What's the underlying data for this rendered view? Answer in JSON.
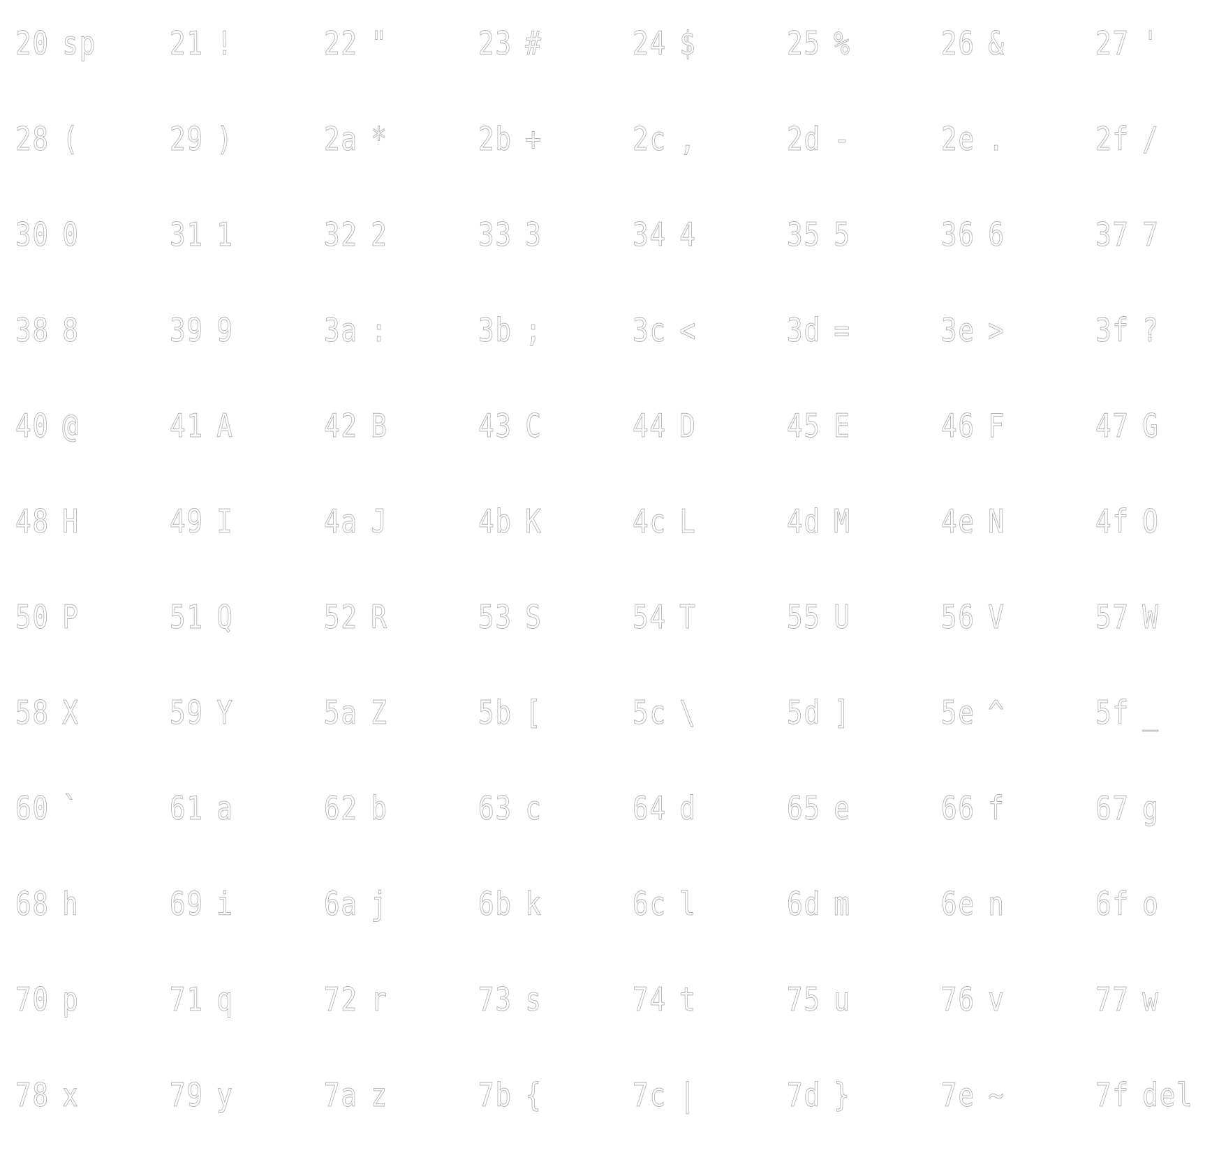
{
  "ascii_table": {
    "rows": [
      [
        {
          "code": "20",
          "ch": "sp"
        },
        {
          "code": "21",
          "ch": "!"
        },
        {
          "code": "22",
          "ch": "\""
        },
        {
          "code": "23",
          "ch": "#"
        },
        {
          "code": "24",
          "ch": "$"
        },
        {
          "code": "25",
          "ch": "%"
        },
        {
          "code": "26",
          "ch": "&"
        },
        {
          "code": "27",
          "ch": "'"
        }
      ],
      [
        {
          "code": "28",
          "ch": "("
        },
        {
          "code": "29",
          "ch": ")"
        },
        {
          "code": "2a",
          "ch": "*"
        },
        {
          "code": "2b",
          "ch": "+"
        },
        {
          "code": "2c",
          "ch": ","
        },
        {
          "code": "2d",
          "ch": "-"
        },
        {
          "code": "2e",
          "ch": "."
        },
        {
          "code": "2f",
          "ch": "/"
        }
      ],
      [
        {
          "code": "30",
          "ch": "0"
        },
        {
          "code": "31",
          "ch": "1"
        },
        {
          "code": "32",
          "ch": "2"
        },
        {
          "code": "33",
          "ch": "3"
        },
        {
          "code": "34",
          "ch": "4"
        },
        {
          "code": "35",
          "ch": "5"
        },
        {
          "code": "36",
          "ch": "6"
        },
        {
          "code": "37",
          "ch": "7"
        }
      ],
      [
        {
          "code": "38",
          "ch": "8"
        },
        {
          "code": "39",
          "ch": "9"
        },
        {
          "code": "3a",
          "ch": ":"
        },
        {
          "code": "3b",
          "ch": ";"
        },
        {
          "code": "3c",
          "ch": "<"
        },
        {
          "code": "3d",
          "ch": "="
        },
        {
          "code": "3e",
          "ch": ">"
        },
        {
          "code": "3f",
          "ch": "?"
        }
      ],
      [
        {
          "code": "40",
          "ch": "@"
        },
        {
          "code": "41",
          "ch": "A"
        },
        {
          "code": "42",
          "ch": "B"
        },
        {
          "code": "43",
          "ch": "C"
        },
        {
          "code": "44",
          "ch": "D"
        },
        {
          "code": "45",
          "ch": "E"
        },
        {
          "code": "46",
          "ch": "F"
        },
        {
          "code": "47",
          "ch": "G"
        }
      ],
      [
        {
          "code": "48",
          "ch": "H"
        },
        {
          "code": "49",
          "ch": "I"
        },
        {
          "code": "4a",
          "ch": "J"
        },
        {
          "code": "4b",
          "ch": "K"
        },
        {
          "code": "4c",
          "ch": "L"
        },
        {
          "code": "4d",
          "ch": "M"
        },
        {
          "code": "4e",
          "ch": "N"
        },
        {
          "code": "4f",
          "ch": "O"
        }
      ],
      [
        {
          "code": "50",
          "ch": "P"
        },
        {
          "code": "51",
          "ch": "Q"
        },
        {
          "code": "52",
          "ch": "R"
        },
        {
          "code": "53",
          "ch": "S"
        },
        {
          "code": "54",
          "ch": "T"
        },
        {
          "code": "55",
          "ch": "U"
        },
        {
          "code": "56",
          "ch": "V"
        },
        {
          "code": "57",
          "ch": "W"
        }
      ],
      [
        {
          "code": "58",
          "ch": "X"
        },
        {
          "code": "59",
          "ch": "Y"
        },
        {
          "code": "5a",
          "ch": "Z"
        },
        {
          "code": "5b",
          "ch": "["
        },
        {
          "code": "5c",
          "ch": "\\"
        },
        {
          "code": "5d",
          "ch": "]"
        },
        {
          "code": "5e",
          "ch": "^"
        },
        {
          "code": "5f",
          "ch": "_"
        }
      ],
      [
        {
          "code": "60",
          "ch": "`"
        },
        {
          "code": "61",
          "ch": "a"
        },
        {
          "code": "62",
          "ch": "b"
        },
        {
          "code": "63",
          "ch": "c"
        },
        {
          "code": "64",
          "ch": "d"
        },
        {
          "code": "65",
          "ch": "e"
        },
        {
          "code": "66",
          "ch": "f"
        },
        {
          "code": "67",
          "ch": "g"
        }
      ],
      [
        {
          "code": "68",
          "ch": "h"
        },
        {
          "code": "69",
          "ch": "i"
        },
        {
          "code": "6a",
          "ch": "j"
        },
        {
          "code": "6b",
          "ch": "k"
        },
        {
          "code": "6c",
          "ch": "l"
        },
        {
          "code": "6d",
          "ch": "m"
        },
        {
          "code": "6e",
          "ch": "n"
        },
        {
          "code": "6f",
          "ch": "o"
        }
      ],
      [
        {
          "code": "70",
          "ch": "p"
        },
        {
          "code": "71",
          "ch": "q"
        },
        {
          "code": "72",
          "ch": "r"
        },
        {
          "code": "73",
          "ch": "s"
        },
        {
          "code": "74",
          "ch": "t"
        },
        {
          "code": "75",
          "ch": "u"
        },
        {
          "code": "76",
          "ch": "v"
        },
        {
          "code": "77",
          "ch": "w"
        }
      ],
      [
        {
          "code": "78",
          "ch": "x"
        },
        {
          "code": "79",
          "ch": "y"
        },
        {
          "code": "7a",
          "ch": "z"
        },
        {
          "code": "7b",
          "ch": "{"
        },
        {
          "code": "7c",
          "ch": "|"
        },
        {
          "code": "7d",
          "ch": "}"
        },
        {
          "code": "7e",
          "ch": "~"
        },
        {
          "code": "7f",
          "ch": "del"
        }
      ]
    ]
  },
  "colors": {
    "background": "#ffffff",
    "glyph_outline": "#b4b4b4"
  }
}
